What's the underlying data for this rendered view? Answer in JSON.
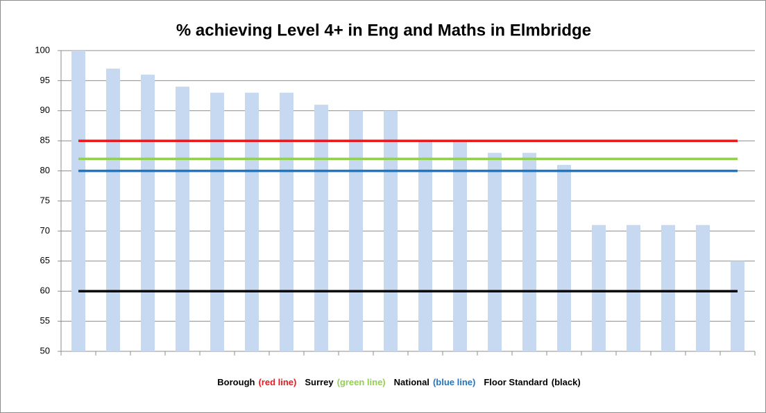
{
  "chart_data": {
    "type": "bar",
    "title": "% achieving Level 4+ in Eng and Maths in Elmbridge",
    "categories": [
      null,
      null,
      null,
      null,
      null,
      null,
      null,
      null,
      null,
      null,
      null,
      null,
      null,
      null,
      null,
      null,
      null,
      null,
      null,
      null
    ],
    "values": [
      100,
      97,
      96,
      94,
      93,
      93,
      93,
      91,
      90,
      90,
      85,
      85,
      83,
      83,
      81,
      71,
      71,
      71,
      71,
      65
    ],
    "color": "#c6d9f1",
    "ylim": [
      50,
      100
    ],
    "yticks": [
      50,
      55,
      60,
      65,
      70,
      75,
      80,
      85,
      90,
      95,
      100
    ],
    "grid": true,
    "reference_lines": [
      {
        "name": "Borough",
        "note": "(red line)",
        "value": 85,
        "color": "#e8191f"
      },
      {
        "name": "Surrey",
        "note": "(green line)",
        "value": 82,
        "color": "#92d050"
      },
      {
        "name": "National",
        "note": "(blue line)",
        "value": 80,
        "color": "#1f77c4"
      },
      {
        "name": "Floor Standard",
        "note": "(black)",
        "value": 60,
        "color": "#000000"
      }
    ]
  }
}
